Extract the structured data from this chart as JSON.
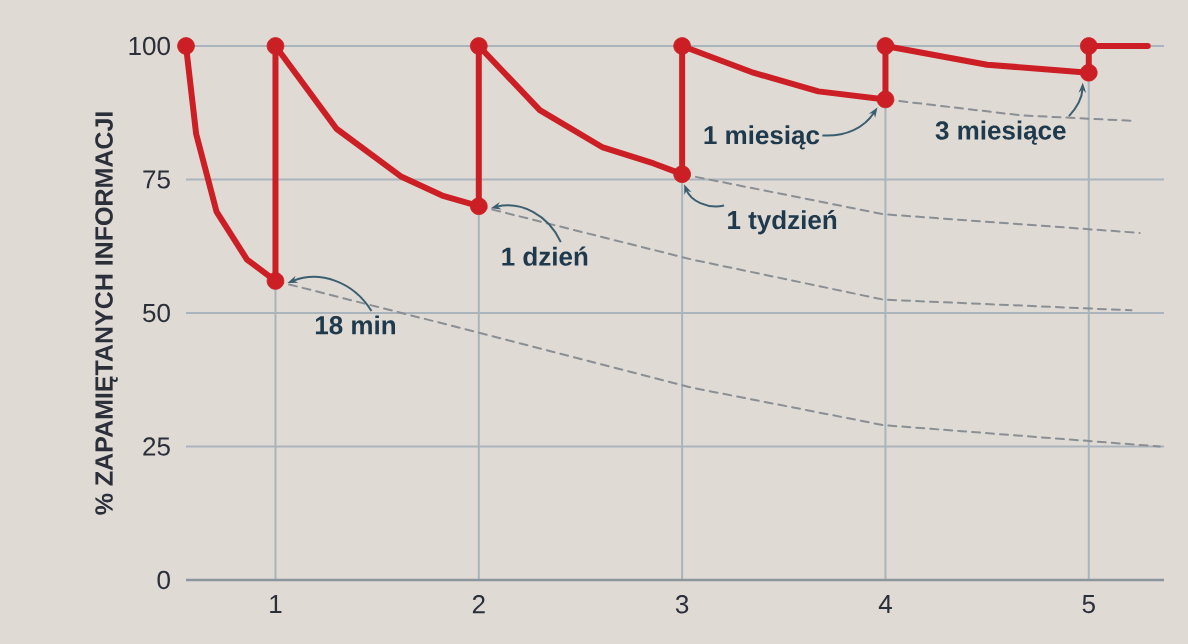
{
  "chart_data": {
    "type": "line",
    "ylabel": "% ZAPAMIĘTANYCH INFORMACJI",
    "xlim": [
      0.56,
      5.37
    ],
    "ylim": [
      0,
      100
    ],
    "xticks": [
      1,
      2,
      3,
      4,
      5
    ],
    "yticks": [
      0,
      25,
      50,
      75,
      100
    ],
    "grid": true,
    "series": [
      {
        "line_style": "dashed",
        "color": "#8a8f94",
        "x": [
          1,
          1.93,
          3.05,
          3.99,
          5.35
        ],
        "values": [
          56,
          47,
          36,
          29,
          25
        ]
      },
      {
        "line_style": "dashed",
        "color": "#8a8f94",
        "x": [
          2,
          3.05,
          3.99,
          5.21
        ],
        "values": [
          70,
          60,
          52.5,
          50.5
        ]
      },
      {
        "line_style": "dashed",
        "color": "#8a8f94",
        "x": [
          3,
          3.99,
          5.25
        ],
        "values": [
          76,
          68.5,
          65
        ]
      },
      {
        "line_style": "dashed",
        "color": "#8a8f94",
        "x": [
          4,
          4.67,
          5.21
        ],
        "values": [
          90,
          87,
          86
        ]
      },
      {
        "line_style": "solid",
        "color": "#cc1f25",
        "x": [
          0.56,
          0.61,
          0.71,
          0.86,
          1,
          1,
          1.3,
          1.62,
          1.82,
          2,
          2,
          2.3,
          2.61,
          2.86,
          3,
          3,
          3.35,
          3.67,
          4,
          4,
          4.5,
          5,
          5,
          5.29
        ],
        "values": [
          100,
          83.5,
          69,
          60,
          56,
          100,
          84.5,
          75.5,
          72,
          70,
          100,
          88,
          81,
          78,
          76,
          100,
          95,
          91.5,
          90,
          100,
          96.5,
          95,
          100,
          100
        ]
      },
      {
        "type": "scatter",
        "marker": "circle",
        "color": "#cc1f25",
        "x": [
          0.56,
          1,
          1,
          2,
          2,
          3,
          3,
          4,
          4,
          5,
          5
        ],
        "values": [
          100,
          56,
          100,
          70,
          100,
          76,
          100,
          90,
          100,
          95,
          100
        ]
      }
    ],
    "annotations": [
      {
        "text": "18 min",
        "x": 1,
        "y": 56
      },
      {
        "text": "1 dzień",
        "x": 2,
        "y": 70
      },
      {
        "text": "1 tydzień",
        "x": 3,
        "y": 76
      },
      {
        "text": "1 miesiąc",
        "x": 4,
        "y": 90
      },
      {
        "text": "3 miesiące",
        "x": 5,
        "y": 95
      }
    ]
  }
}
